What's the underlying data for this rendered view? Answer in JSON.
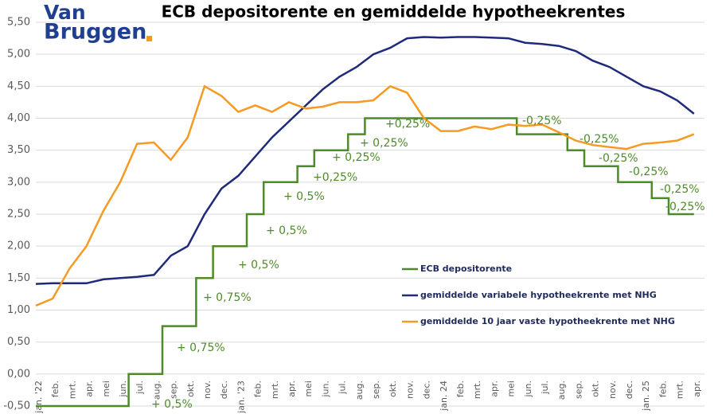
{
  "logo": {
    "line1": "Van",
    "line2": "Bruggen"
  },
  "chart_data": {
    "type": "line",
    "title": "ECB depositorente en gemiddelde hypotheekrentes",
    "categories": [
      "jan. '22",
      "feb.",
      "mrt.",
      "apr.",
      "mei",
      "jun.",
      "jul.",
      "aug.",
      "sep.",
      "okt.",
      "nov.",
      "dec.",
      "jan. '23",
      "feb.",
      "mrt.",
      "apr.",
      "mei",
      "jun.",
      "jul.",
      "aug.",
      "sep.",
      "okt.",
      "nov.",
      "dec.",
      "jan. 24",
      "feb.",
      "mrt.",
      "apr.",
      "mei",
      "jun.",
      "jul.",
      "aug.",
      "sep.",
      "okt.",
      "nov.",
      "dec.",
      "jan. 25",
      "feb.",
      "mrt.",
      "apr."
    ],
    "series": [
      {
        "name": "ECB depositorente",
        "color": "#4e8a2a",
        "step": true,
        "values": [
          -0.5,
          -0.5,
          -0.5,
          -0.5,
          -0.5,
          -0.5,
          0,
          0,
          0.75,
          0.75,
          1.5,
          2.0,
          2.0,
          2.5,
          3.0,
          3.0,
          3.25,
          3.5,
          3.5,
          3.75,
          4.0,
          4.0,
          4.0,
          4.0,
          4.0,
          4.0,
          4.0,
          4.0,
          4.0,
          3.75,
          3.75,
          3.75,
          3.5,
          3.25,
          3.25,
          3.0,
          3.0,
          2.75,
          2.5,
          2.5
        ]
      },
      {
        "name": "gemiddelde variabele hypotheekrente met NHG",
        "color": "#1f2a7a",
        "values": [
          1.41,
          1.42,
          1.42,
          1.42,
          1.48,
          1.5,
          1.52,
          1.55,
          1.85,
          2.0,
          2.5,
          2.9,
          3.1,
          3.4,
          3.7,
          3.95,
          4.2,
          4.45,
          4.65,
          4.8,
          5.0,
          5.1,
          5.25,
          5.27,
          5.26,
          5.27,
          5.27,
          5.26,
          5.25,
          5.18,
          5.16,
          5.13,
          5.05,
          4.9,
          4.8,
          4.65,
          4.5,
          4.42,
          4.28,
          4.07
        ]
      },
      {
        "name": "gemiddelde 10 jaar vaste hypotheekrente met NHG",
        "color": "#f59a23",
        "values": [
          1.07,
          1.18,
          1.65,
          2.0,
          2.55,
          3.0,
          3.6,
          3.62,
          3.35,
          3.7,
          4.5,
          4.35,
          4.1,
          4.2,
          4.1,
          4.25,
          4.15,
          4.18,
          4.25,
          4.25,
          4.28,
          4.5,
          4.4,
          4.0,
          3.8,
          3.8,
          3.87,
          3.83,
          3.9,
          3.88,
          3.9,
          3.78,
          3.65,
          3.58,
          3.55,
          3.52,
          3.6,
          3.62,
          3.65,
          3.75
        ]
      }
    ],
    "ylim": [
      -0.5,
      5.5
    ],
    "yticks": [
      {
        "value": -0.5,
        "label": "-0,50"
      },
      {
        "value": 0,
        "label": "0,00"
      },
      {
        "value": 0.5,
        "label": "0,50"
      },
      {
        "value": 1,
        "label": "1,00"
      },
      {
        "value": 1.5,
        "label": "1,50"
      },
      {
        "value": 2,
        "label": "2,00"
      },
      {
        "value": 2.5,
        "label": "2,50"
      },
      {
        "value": 3,
        "label": "3,00"
      },
      {
        "value": 3.5,
        "label": "3,50"
      },
      {
        "value": 4,
        "label": "4,00"
      },
      {
        "value": 4.5,
        "label": "4,50"
      },
      {
        "value": 5,
        "label": "5,00"
      },
      {
        "value": 5.5,
        "label": "5,50"
      }
    ],
    "grid": true,
    "annotations": [
      "+ 0,5%",
      "+ 0,75%",
      "+ 0,75%",
      "+ 0,5%",
      "+ 0,5%",
      "+ 0,5%",
      "+0,25%",
      "+ 0,25%",
      "+ 0,25%",
      "+0,25%",
      "-0,25%",
      "-0,25%",
      "-0,25%",
      "-0,25%",
      "-0,25%",
      "-0,25%"
    ]
  }
}
